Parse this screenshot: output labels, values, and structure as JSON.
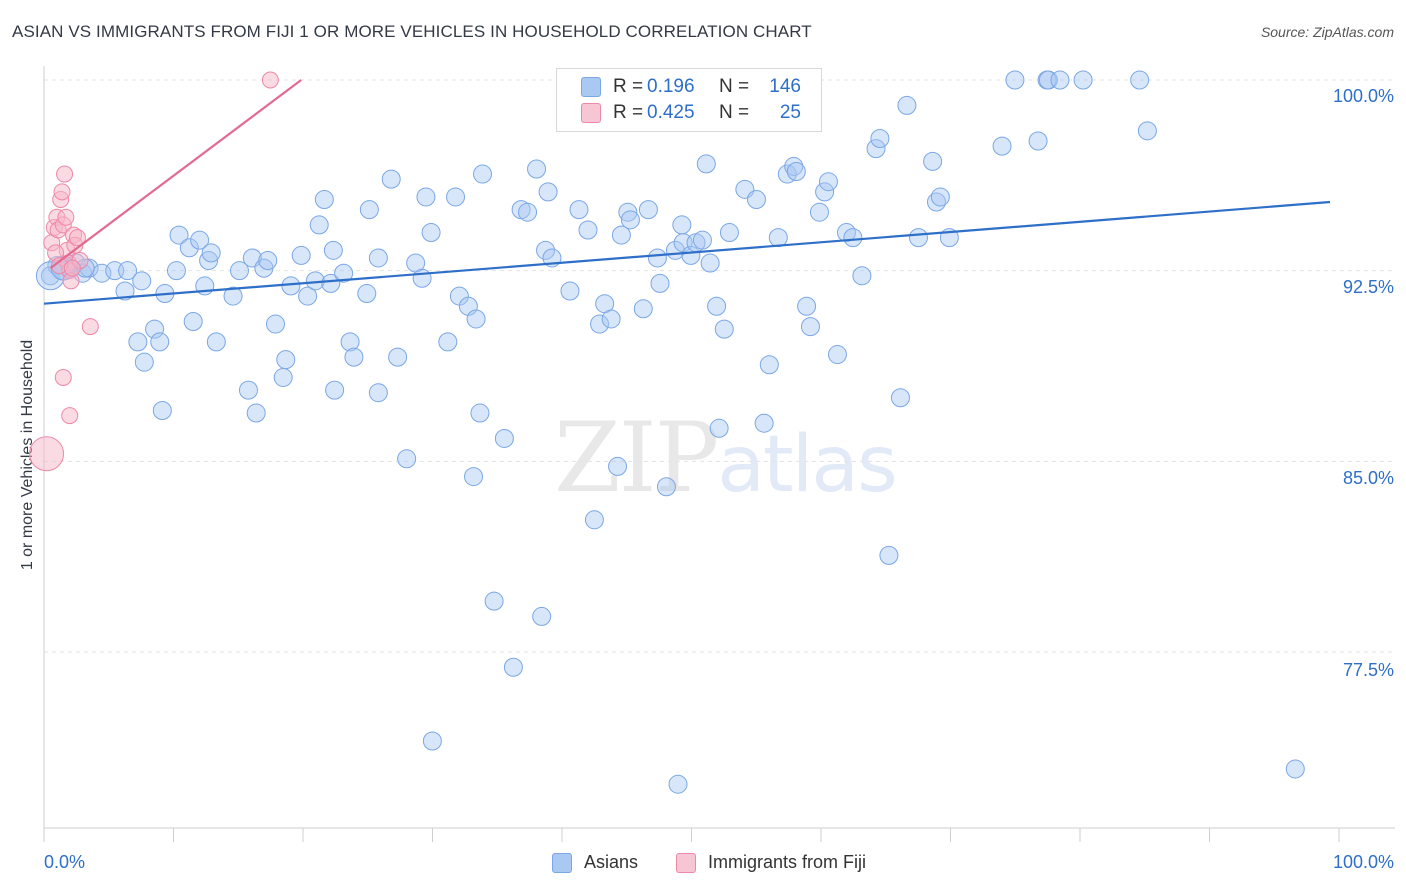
{
  "header": {
    "title": "ASIAN VS IMMIGRANTS FROM FIJI 1 OR MORE VEHICLES IN HOUSEHOLD CORRELATION CHART",
    "source": "Source: ZipAtlas.com"
  },
  "watermark": {
    "zip": "ZIP",
    "atlas": "atlas"
  },
  "legend": {
    "rows": [
      {
        "r_label": "R =",
        "r_value": "0.196",
        "n_label": "N =",
        "n_value": "146",
        "color": "#a9c8f2"
      },
      {
        "r_label": "R =",
        "r_value": "0.425",
        "n_label": "N =",
        "n_value": "25",
        "color": "#f6b6c8"
      }
    ]
  },
  "bottom_legend": {
    "asians": "Asians",
    "fiji": "Immigrants from Fiji"
  },
  "chart_data": {
    "type": "scatter",
    "title": "ASIAN VS IMMIGRANTS FROM FIJI 1 OR MORE VEHICLES IN HOUSEHOLD CORRELATION CHART",
    "ylabel": "1 or more Vehicles in Household",
    "xlabel": "",
    "x_tick_labels": [
      "0.0%",
      "100.0%"
    ],
    "y_tick_labels": [
      "100.0%",
      "92.5%",
      "85.0%",
      "77.5%"
    ],
    "y_ticks": [
      100.0,
      92.5,
      85.0,
      77.5
    ],
    "xlim": [
      0,
      100
    ],
    "ylim": [
      70.8,
      100.7
    ],
    "grid": true,
    "legend_position": "top-center",
    "colors": {
      "asians": "#7aa7e6",
      "asians_fill": "#a9c8f2",
      "fiji": "#ee88a8",
      "fiji_fill": "#f6b6c8",
      "asians_line": "#2e6fc9",
      "fiji_line": "#e2698f"
    },
    "series": [
      {
        "name": "Asians",
        "r": 0.196,
        "n": 146,
        "trend": {
          "x": [
            0,
            100
          ],
          "y": [
            91.2,
            95.2
          ]
        },
        "points": [
          [
            0.5,
            92.3
          ],
          [
            1.0,
            92.7
          ],
          [
            1.5,
            92.5
          ],
          [
            2.0,
            92.6
          ],
          [
            2.5,
            92.8
          ],
          [
            3.0,
            92.4
          ],
          [
            3.5,
            92.6
          ],
          [
            4.5,
            92.4
          ],
          [
            5.5,
            92.5
          ],
          [
            6.5,
            92.5
          ],
          [
            3.2,
            92.6
          ],
          [
            6.3,
            91.7
          ],
          [
            7.6,
            92.1
          ],
          [
            7.3,
            89.7
          ],
          [
            7.8,
            88.9
          ],
          [
            8.6,
            90.2
          ],
          [
            9.0,
            89.7
          ],
          [
            9.4,
            91.6
          ],
          [
            10.3,
            92.5
          ],
          [
            10.5,
            93.9
          ],
          [
            11.3,
            93.4
          ],
          [
            12.1,
            93.7
          ],
          [
            12.8,
            92.9
          ],
          [
            13.0,
            93.2
          ],
          [
            11.6,
            90.5
          ],
          [
            13.4,
            89.7
          ],
          [
            14.7,
            91.5
          ],
          [
            15.2,
            92.5
          ],
          [
            15.9,
            87.8
          ],
          [
            16.2,
            93.0
          ],
          [
            16.5,
            86.9
          ],
          [
            17.1,
            92.6
          ],
          [
            17.4,
            92.9
          ],
          [
            18.0,
            90.4
          ],
          [
            18.6,
            88.3
          ],
          [
            18.8,
            89.0
          ],
          [
            19.2,
            91.9
          ],
          [
            20.0,
            93.1
          ],
          [
            20.5,
            91.5
          ],
          [
            21.1,
            92.1
          ],
          [
            21.4,
            94.3
          ],
          [
            21.8,
            95.3
          ],
          [
            22.3,
            92.0
          ],
          [
            22.6,
            87.8
          ],
          [
            23.3,
            92.4
          ],
          [
            23.8,
            89.7
          ],
          [
            24.1,
            89.1
          ],
          [
            25.1,
            91.6
          ],
          [
            25.3,
            94.9
          ],
          [
            26.0,
            87.7
          ],
          [
            26.0,
            93.0
          ],
          [
            27.0,
            96.1
          ],
          [
            27.5,
            89.1
          ],
          [
            28.2,
            85.1
          ],
          [
            28.9,
            92.8
          ],
          [
            29.4,
            92.2
          ],
          [
            29.7,
            95.4
          ],
          [
            30.1,
            94.0
          ],
          [
            31.4,
            89.7
          ],
          [
            32.0,
            95.4
          ],
          [
            32.3,
            91.5
          ],
          [
            33.0,
            91.1
          ],
          [
            33.6,
            90.6
          ],
          [
            33.9,
            86.9
          ],
          [
            33.4,
            84.4
          ],
          [
            34.1,
            96.3
          ],
          [
            35.0,
            79.5
          ],
          [
            35.8,
            85.9
          ],
          [
            36.5,
            76.9
          ],
          [
            37.1,
            94.9
          ],
          [
            37.6,
            94.8
          ],
          [
            38.3,
            96.5
          ],
          [
            39.0,
            93.3
          ],
          [
            39.2,
            95.6
          ],
          [
            39.5,
            93.0
          ],
          [
            40.9,
            91.7
          ],
          [
            41.6,
            94.9
          ],
          [
            42.3,
            94.1
          ],
          [
            42.8,
            82.7
          ],
          [
            43.2,
            90.4
          ],
          [
            43.6,
            91.2
          ],
          [
            44.1,
            90.6
          ],
          [
            44.6,
            84.8
          ],
          [
            44.9,
            93.9
          ],
          [
            45.4,
            94.8
          ],
          [
            45.6,
            94.5
          ],
          [
            46.6,
            91.0
          ],
          [
            47.0,
            94.9
          ],
          [
            47.7,
            93.0
          ],
          [
            47.9,
            92.0
          ],
          [
            49.1,
            93.3
          ],
          [
            49.6,
            94.3
          ],
          [
            49.7,
            93.6
          ],
          [
            50.3,
            93.1
          ],
          [
            50.7,
            93.6
          ],
          [
            51.2,
            93.7
          ],
          [
            51.5,
            96.7
          ],
          [
            51.8,
            92.8
          ],
          [
            52.3,
            91.1
          ],
          [
            52.5,
            86.3
          ],
          [
            52.9,
            90.2
          ],
          [
            53.3,
            94.0
          ],
          [
            54.5,
            95.7
          ],
          [
            55.4,
            95.3
          ],
          [
            56.0,
            86.5
          ],
          [
            56.4,
            88.8
          ],
          [
            57.1,
            93.8
          ],
          [
            57.8,
            96.3
          ],
          [
            58.3,
            96.6
          ],
          [
            58.5,
            96.4
          ],
          [
            59.3,
            91.1
          ],
          [
            59.6,
            90.3
          ],
          [
            60.3,
            94.8
          ],
          [
            60.7,
            95.6
          ],
          [
            61.0,
            96.0
          ],
          [
            61.7,
            89.2
          ],
          [
            62.4,
            94.0
          ],
          [
            62.9,
            93.8
          ],
          [
            63.6,
            92.3
          ],
          [
            64.7,
            97.3
          ],
          [
            65.0,
            97.7
          ],
          [
            65.7,
            81.3
          ],
          [
            66.6,
            87.5
          ],
          [
            67.1,
            99.0
          ],
          [
            68.0,
            93.8
          ],
          [
            69.1,
            96.8
          ],
          [
            69.4,
            95.2
          ],
          [
            69.7,
            95.4
          ],
          [
            70.4,
            93.8
          ],
          [
            74.5,
            97.4
          ],
          [
            75.5,
            100.0
          ],
          [
            77.3,
            97.6
          ],
          [
            78.0,
            100.0
          ],
          [
            78.1,
            100.0
          ],
          [
            79.0,
            100.0
          ],
          [
            80.8,
            100.0
          ],
          [
            85.2,
            100.0
          ],
          [
            85.8,
            98.0
          ],
          [
            97.3,
            72.9
          ],
          [
            49.3,
            72.3
          ],
          [
            30.2,
            74.0
          ],
          [
            38.7,
            78.9
          ],
          [
            12.5,
            91.9
          ],
          [
            9.2,
            87.0
          ],
          [
            22.5,
            93.3
          ],
          [
            48.4,
            84.0
          ]
        ]
      },
      {
        "name": "Immigrants from Fiji",
        "r": 0.425,
        "n": 25,
        "trend": {
          "x": [
            0.5,
            20.0
          ],
          "y": [
            92.6,
            100.0
          ]
        },
        "points": [
          [
            0.2,
            85.3
          ],
          [
            0.6,
            93.6
          ],
          [
            0.8,
            94.2
          ],
          [
            1.0,
            94.6
          ],
          [
            1.1,
            94.1
          ],
          [
            1.3,
            95.3
          ],
          [
            1.4,
            95.6
          ],
          [
            1.5,
            94.3
          ],
          [
            1.6,
            96.3
          ],
          [
            1.7,
            94.6
          ],
          [
            1.8,
            93.3
          ],
          [
            1.9,
            92.8
          ],
          [
            2.0,
            92.5
          ],
          [
            2.1,
            92.1
          ],
          [
            2.3,
            93.9
          ],
          [
            2.4,
            93.5
          ],
          [
            2.6,
            93.8
          ],
          [
            2.8,
            92.9
          ],
          [
            1.5,
            88.3
          ],
          [
            2.0,
            86.8
          ],
          [
            3.6,
            90.3
          ],
          [
            0.9,
            93.2
          ],
          [
            1.2,
            92.7
          ],
          [
            2.2,
            92.6
          ],
          [
            17.6,
            100.0
          ]
        ]
      }
    ]
  }
}
